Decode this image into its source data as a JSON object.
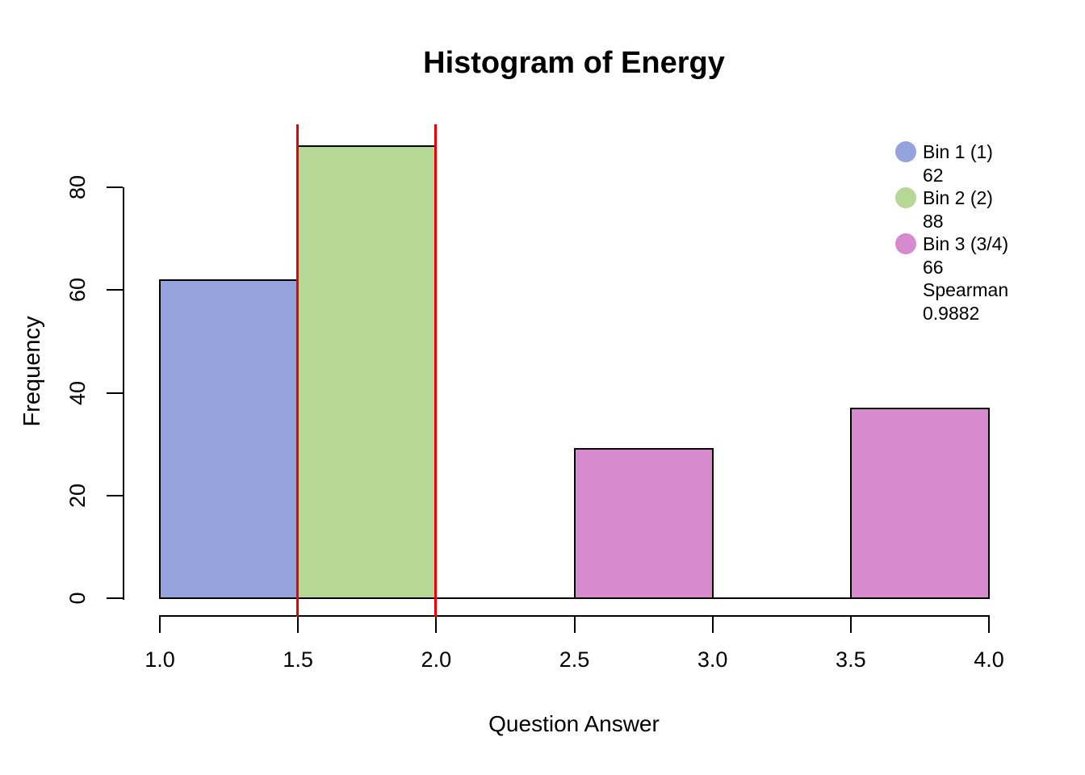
{
  "chart_data": {
    "type": "bar",
    "title": "Histogram of Energy",
    "xlabel": "Question Answer",
    "ylabel": "Frequency",
    "xlim": [
      1.0,
      4.0
    ],
    "ylim": [
      0,
      80
    ],
    "x_ticks": [
      "1.0",
      "1.5",
      "2.0",
      "2.5",
      "3.0",
      "3.5",
      "4.0"
    ],
    "y_ticks": [
      "0",
      "20",
      "40",
      "60",
      "80"
    ],
    "grid": false,
    "legend_position": "top-right",
    "bars": [
      {
        "bin": "Bin 1",
        "x0": 1.0,
        "x1": 1.5,
        "count": 62,
        "color": "#94A3DB"
      },
      {
        "bin": "Bin 2",
        "x0": 1.5,
        "x1": 2.0,
        "count": 88,
        "color": "#B5D896"
      },
      {
        "bin": "Bin 3",
        "x0": 2.5,
        "x1": 3.0,
        "count": 29,
        "color": "#D78ACD"
      },
      {
        "bin": "Bin 3",
        "x0": 3.5,
        "x1": 4.0,
        "count": 37,
        "color": "#D78ACD"
      }
    ],
    "reference_lines": [
      {
        "x": 1.5,
        "color": "#EE0000"
      },
      {
        "x": 2.0,
        "color": "#EE0000"
      }
    ],
    "legend": {
      "entries": [
        {
          "color": "#94A3DB",
          "lines": [
            "Bin 1 (1)",
            "62"
          ]
        },
        {
          "color": "#B5D896",
          "lines": [
            "Bin 2 (2)",
            "88"
          ]
        },
        {
          "color": "#D78ACD",
          "lines": [
            "Bin 3 (3/4)",
            "66",
            "Spearman",
            "0.9882"
          ]
        }
      ]
    }
  }
}
